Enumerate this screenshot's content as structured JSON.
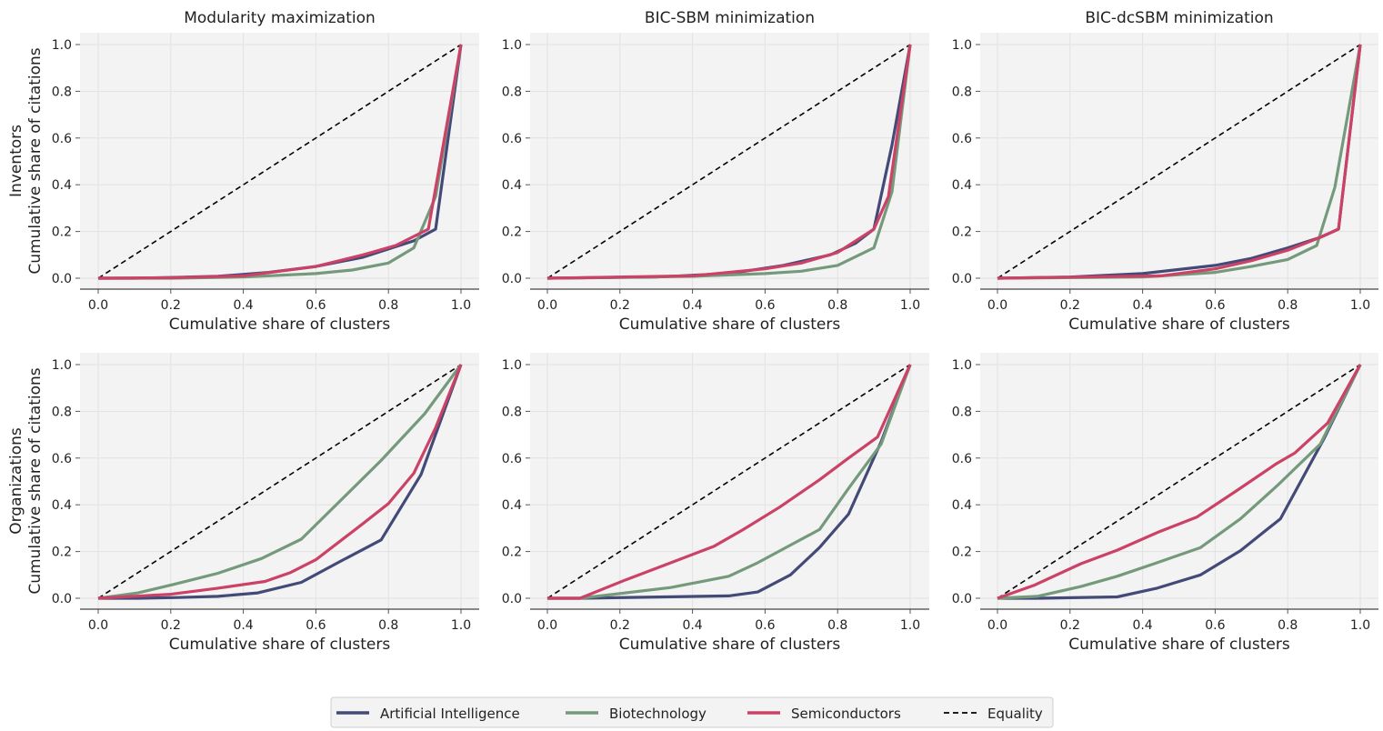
{
  "chart_data": {
    "type": "line",
    "legend": {
      "placement": "bottom-center",
      "entries": [
        {
          "name": "Artificial Intelligence",
          "color": "#434a78",
          "style": "solid"
        },
        {
          "name": "Biotechnology",
          "color": "#759a7b",
          "style": "solid"
        },
        {
          "name": "Semiconductors",
          "color": "#cc4166",
          "style": "solid"
        },
        {
          "name": "Equality",
          "color": "#000000",
          "style": "dashed"
        }
      ]
    },
    "xlim": [
      0,
      1
    ],
    "ylim": [
      0,
      1
    ],
    "ticks": [
      "0.0",
      "0.2",
      "0.4",
      "0.6",
      "0.8",
      "1.0"
    ],
    "grid": true,
    "column_titles": [
      "Modularity maximization",
      "BIC-SBM minimization",
      "BIC-dcSBM minimization"
    ],
    "row_labels": [
      "Inventors",
      "Organizations"
    ],
    "xlabel": "Cumulative share of clusters",
    "ylabel": "Cumulative share of citations",
    "panels": [
      {
        "row": 0,
        "col": 0,
        "series": [
          {
            "name": "Artificial Intelligence",
            "x": [
              0,
              0.1,
              0.2,
              0.33,
              0.47,
              0.6,
              0.73,
              0.8,
              0.87,
              0.93,
              1
            ],
            "y": [
              0,
              0,
              0.003,
              0.008,
              0.025,
              0.05,
              0.09,
              0.125,
              0.16,
              0.21,
              1
            ]
          },
          {
            "name": "Biotechnology",
            "x": [
              0,
              0.2,
              0.4,
              0.6,
              0.7,
              0.8,
              0.87,
              0.93,
              1
            ],
            "y": [
              0,
              0,
              0.005,
              0.02,
              0.035,
              0.065,
              0.13,
              0.35,
              1
            ]
          },
          {
            "name": "Semiconductors",
            "x": [
              0,
              0.2,
              0.4,
              0.6,
              0.73,
              0.82,
              0.91,
              1
            ],
            "y": [
              0,
              0.002,
              0.01,
              0.05,
              0.1,
              0.14,
              0.21,
              1
            ]
          }
        ]
      },
      {
        "row": 0,
        "col": 1,
        "series": [
          {
            "name": "Artificial Intelligence",
            "x": [
              0,
              0.3,
              0.5,
              0.65,
              0.78,
              0.85,
              0.9,
              0.95,
              1
            ],
            "y": [
              0,
              0.005,
              0.02,
              0.055,
              0.1,
              0.15,
              0.21,
              0.57,
              1
            ]
          },
          {
            "name": "Biotechnology",
            "x": [
              0,
              0.4,
              0.6,
              0.7,
              0.8,
              0.9,
              0.95,
              1
            ],
            "y": [
              0,
              0.008,
              0.02,
              0.03,
              0.055,
              0.13,
              0.37,
              1
            ]
          },
          {
            "name": "Semiconductors",
            "x": [
              0,
              0.4,
              0.6,
              0.7,
              0.8,
              0.83,
              0.9,
              0.94,
              1
            ],
            "y": [
              0,
              0.01,
              0.04,
              0.065,
              0.11,
              0.14,
              0.21,
              0.35,
              1
            ]
          }
        ]
      },
      {
        "row": 0,
        "col": 2,
        "series": [
          {
            "name": "Artificial Intelligence",
            "x": [
              0,
              0.2,
              0.4,
              0.6,
              0.7,
              0.8,
              0.89,
              0.94,
              1
            ],
            "y": [
              0,
              0.005,
              0.02,
              0.055,
              0.085,
              0.13,
              0.175,
              0.21,
              1
            ]
          },
          {
            "name": "Biotechnology",
            "x": [
              0,
              0.4,
              0.6,
              0.7,
              0.8,
              0.88,
              0.93,
              1
            ],
            "y": [
              0,
              0.005,
              0.025,
              0.05,
              0.08,
              0.14,
              0.39,
              1
            ]
          },
          {
            "name": "Semiconductors",
            "x": [
              0,
              0.45,
              0.6,
              0.7,
              0.8,
              0.89,
              0.94,
              1
            ],
            "y": [
              0,
              0.01,
              0.04,
              0.075,
              0.12,
              0.175,
              0.21,
              1
            ]
          }
        ]
      },
      {
        "row": 1,
        "col": 0,
        "series": [
          {
            "name": "Artificial Intelligence",
            "x": [
              0,
              0.11,
              0.22,
              0.33,
              0.44,
              0.56,
              0.67,
              0.78,
              0.89,
              1
            ],
            "y": [
              0,
              0,
              0.003,
              0.008,
              0.023,
              0.068,
              0.16,
              0.25,
              0.53,
              1
            ]
          },
          {
            "name": "Biotechnology",
            "x": [
              0,
              0.11,
              0.21,
              0.33,
              0.45,
              0.56,
              0.78,
              0.9,
              1
            ],
            "y": [
              0,
              0.023,
              0.06,
              0.107,
              0.17,
              0.253,
              0.59,
              0.79,
              1
            ]
          },
          {
            "name": "Semiconductors",
            "x": [
              0,
              0.2,
              0.33,
              0.46,
              0.53,
              0.6,
              0.73,
              0.8,
              0.87,
              0.93,
              1
            ],
            "y": [
              0,
              0.017,
              0.043,
              0.072,
              0.11,
              0.165,
              0.32,
              0.405,
              0.535,
              0.73,
              1
            ]
          }
        ]
      },
      {
        "row": 1,
        "col": 1,
        "series": [
          {
            "name": "Artificial Intelligence",
            "x": [
              0,
              0.09,
              0.5,
              0.58,
              0.67,
              0.75,
              0.83,
              0.92,
              1
            ],
            "y": [
              0,
              0,
              0.01,
              0.027,
              0.1,
              0.217,
              0.36,
              0.67,
              1
            ]
          },
          {
            "name": "Biotechnology",
            "x": [
              0,
              0.09,
              0.34,
              0.5,
              0.58,
              0.75,
              0.83,
              0.92,
              1
            ],
            "y": [
              0,
              0,
              0.046,
              0.094,
              0.152,
              0.294,
              0.47,
              0.66,
              1
            ]
          },
          {
            "name": "Semiconductors",
            "x": [
              0,
              0.09,
              0.21,
              0.33,
              0.46,
              0.54,
              0.64,
              0.75,
              0.83,
              0.91,
              1
            ],
            "y": [
              0,
              0,
              0.075,
              0.146,
              0.223,
              0.294,
              0.39,
              0.507,
              0.6,
              0.69,
              1
            ]
          }
        ]
      },
      {
        "row": 1,
        "col": 2,
        "series": [
          {
            "name": "Artificial Intelligence",
            "x": [
              0,
              0.11,
              0.33,
              0.44,
              0.56,
              0.67,
              0.78,
              0.9,
              1
            ],
            "y": [
              0,
              0,
              0.006,
              0.043,
              0.1,
              0.204,
              0.34,
              0.683,
              1
            ]
          },
          {
            "name": "Biotechnology",
            "x": [
              0,
              0.11,
              0.23,
              0.33,
              0.44,
              0.56,
              0.67,
              0.77,
              0.89,
              1
            ],
            "y": [
              0,
              0.008,
              0.05,
              0.094,
              0.152,
              0.217,
              0.34,
              0.48,
              0.66,
              1
            ]
          },
          {
            "name": "Semiconductors",
            "x": [
              0,
              0.1,
              0.23,
              0.33,
              0.44,
              0.55,
              0.66,
              0.77,
              0.82,
              0.91,
              1
            ],
            "y": [
              0,
              0.055,
              0.148,
              0.206,
              0.281,
              0.348,
              0.461,
              0.577,
              0.622,
              0.75,
              1
            ]
          }
        ]
      }
    ]
  }
}
